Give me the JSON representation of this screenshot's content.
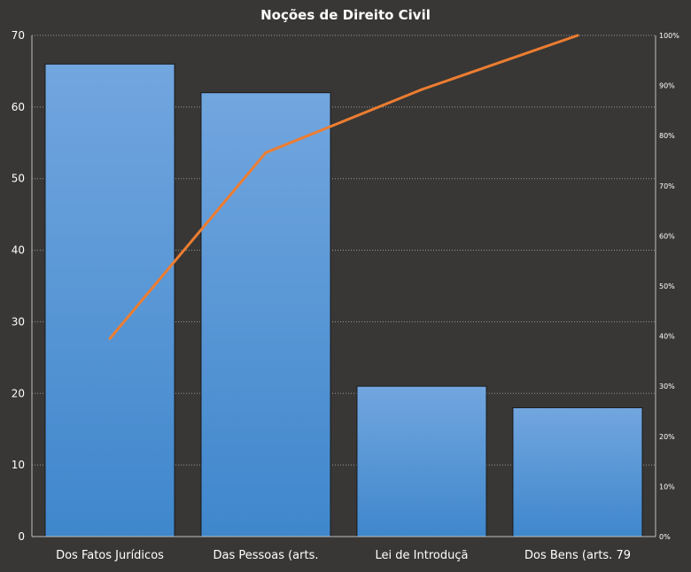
{
  "chart_data": {
    "type": "bar",
    "title": "Noções de Direito  Civil",
    "categories": [
      "Dos Fatos Jurídicos",
      "Das Pessoas (arts.",
      "Lei de Introduçã",
      "Dos Bens (arts. 79"
    ],
    "values": [
      66,
      62,
      21,
      18
    ],
    "cumulative_pct": [
      39.5,
      76.6,
      89.2,
      100
    ],
    "ylim": [
      0,
      70
    ],
    "yticks": [
      0,
      10,
      20,
      30,
      40,
      50,
      60,
      70
    ],
    "y2lim": [
      0,
      100
    ],
    "y2ticks": [
      "0%",
      "10%",
      "20%",
      "30%",
      "40%",
      "50%",
      "60%",
      "70%",
      "80%",
      "90%",
      "100%"
    ],
    "grid": true,
    "legend": "none",
    "colors": {
      "background": "#383735",
      "bar_top": "#72a6df",
      "bar_bottom": "#3f87cc",
      "line": "#ed7d31",
      "text": "#ffffff",
      "grid": "#9a9a9a"
    }
  }
}
